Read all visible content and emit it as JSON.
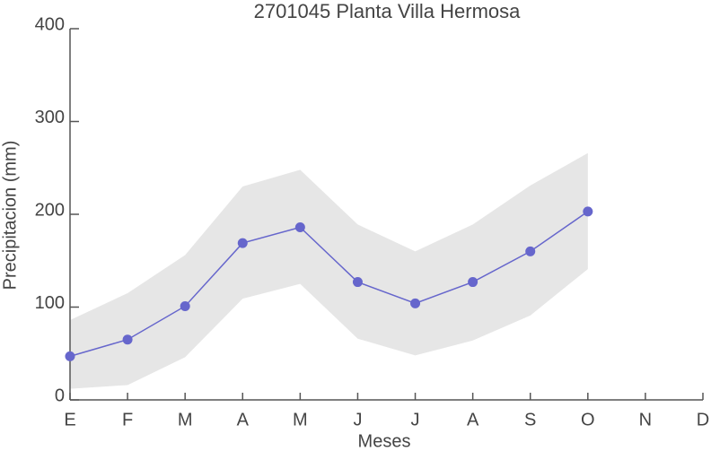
{
  "chart_data": {
    "type": "line",
    "title": "2701045 Planta Villa Hermosa",
    "xlabel": "Meses",
    "ylabel": "Precipitacion (mm)",
    "categories": [
      "E",
      "F",
      "M",
      "A",
      "M",
      "J",
      "J",
      "A",
      "S",
      "O",
      "N",
      "D"
    ],
    "series": [
      {
        "color": "#6666cc",
        "values": [
          47,
          65,
          101,
          169,
          186,
          127,
          104,
          127,
          160,
          203,
          null,
          null
        ]
      }
    ],
    "band": {
      "color": "#e6e6e6",
      "lower": [
        12,
        16,
        46,
        109,
        125,
        66,
        48,
        64,
        91,
        141,
        null,
        null
      ],
      "upper": [
        86,
        115,
        156,
        230,
        248,
        189,
        160,
        189,
        231,
        266,
        null,
        null
      ]
    },
    "ylim": [
      0,
      400
    ],
    "yticks": [
      0,
      100,
      200,
      300,
      400
    ]
  }
}
